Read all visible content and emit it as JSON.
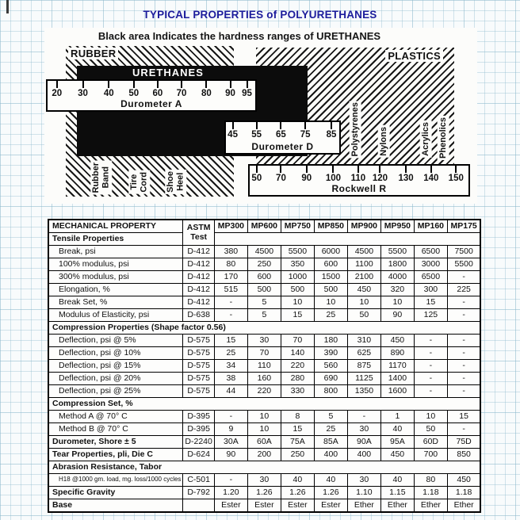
{
  "page": {
    "title": "TYPICAL PROPERTIES of POLYURETHANES",
    "title_color": "#1c1c9c",
    "subtitle": "Black area Indicates the hardness ranges of URETHANES"
  },
  "diagram": {
    "rubber_label": "RUBBER",
    "plastics_label": "PLASTICS",
    "urethanes_label": "URETHANES",
    "black_color": "#0c0c0c",
    "scales": {
      "durometer_a": {
        "label": "Durometer A",
        "ticks": [
          "20",
          "30",
          "40",
          "50",
          "60",
          "70",
          "80",
          "90",
          "95"
        ]
      },
      "durometer_d": {
        "label": "Durometer D",
        "ticks": [
          "45",
          "55",
          "65",
          "75",
          "85"
        ]
      },
      "rockwell_r": {
        "label": "Rockwell R",
        "ticks": [
          "50",
          "70",
          "90",
          "100",
          "110",
          "120",
          "130",
          "140",
          "150"
        ]
      }
    },
    "rubber_examples": [
      "Rubber Band",
      "Tire Cord",
      "Shoe Heel"
    ],
    "plastics_examples": [
      "Polystyrenes",
      "Nylons",
      "Acrylics",
      "Phenolics"
    ]
  },
  "table": {
    "header": {
      "property": "MECHANICAL PROPERTY",
      "astm_line1": "ASTM",
      "astm_line2": "Test",
      "grades": [
        "MP300",
        "MP600",
        "MP750",
        "MP850",
        "MP900",
        "MP950",
        "MP160",
        "MP175"
      ],
      "first_section": "Tensile Properties"
    },
    "rows": [
      {
        "style": "indent",
        "label": "Break, psi",
        "astm": "D-412",
        "values": [
          "380",
          "4500",
          "5500",
          "6000",
          "4500",
          "5500",
          "6500",
          "7500"
        ]
      },
      {
        "style": "indent",
        "label": "100% modulus, psi",
        "astm": "D-412",
        "values": [
          "80",
          "250",
          "350",
          "600",
          "1100",
          "1800",
          "3000",
          "5500"
        ]
      },
      {
        "style": "indent",
        "label": "300% modulus, psi",
        "astm": "D-412",
        "values": [
          "170",
          "600",
          "1000",
          "1500",
          "2100",
          "4000",
          "6500",
          "-"
        ]
      },
      {
        "style": "indent",
        "label": "Elongation, %",
        "astm": "D-412",
        "values": [
          "515",
          "500",
          "500",
          "500",
          "450",
          "320",
          "300",
          "225"
        ]
      },
      {
        "style": "indent",
        "label": "Break Set, %",
        "astm": "D-412",
        "values": [
          "-",
          "5",
          "10",
          "10",
          "10",
          "10",
          "15",
          "-"
        ]
      },
      {
        "style": "indent",
        "label": "Modulus of Elasticity, psi",
        "astm": "D-638",
        "values": [
          "-",
          "5",
          "15",
          "25",
          "50",
          "90",
          "125",
          "-"
        ]
      },
      {
        "style": "section",
        "label": "Compression Properties (Shape factor 0.56)"
      },
      {
        "style": "indent",
        "label": "Deflection, psi @ 5%",
        "astm": "D-575",
        "values": [
          "15",
          "30",
          "70",
          "180",
          "310",
          "450",
          "-",
          "-"
        ]
      },
      {
        "style": "indent",
        "label": "Deflection, psi @ 10%",
        "astm": "D-575",
        "values": [
          "25",
          "70",
          "140",
          "390",
          "625",
          "890",
          "-",
          "-"
        ]
      },
      {
        "style": "indent",
        "label": "Deflection, psi @ 15%",
        "astm": "D-575",
        "values": [
          "34",
          "110",
          "220",
          "560",
          "875",
          "1170",
          "-",
          "-"
        ]
      },
      {
        "style": "indent",
        "label": "Deflection, psi @ 20%",
        "astm": "D-575",
        "values": [
          "38",
          "160",
          "280",
          "690",
          "1125",
          "1400",
          "-",
          "-"
        ]
      },
      {
        "style": "indent",
        "label": "Deflection, psi @ 25%",
        "astm": "D-575",
        "values": [
          "44",
          "220",
          "330",
          "800",
          "1350",
          "1600",
          "-",
          "-"
        ]
      },
      {
        "style": "section",
        "label": "Compression Set, %"
      },
      {
        "style": "indent",
        "label": "Method A @ 70° C",
        "astm": "D-395",
        "values": [
          "-",
          "10",
          "8",
          "5",
          "-",
          "1",
          "10",
          "15"
        ]
      },
      {
        "style": "indent",
        "label": "Method B @ 70° C",
        "astm": "D-395",
        "values": [
          "9",
          "10",
          "15",
          "25",
          "30",
          "40",
          "50",
          "-"
        ]
      },
      {
        "style": "bold",
        "label": "Durometer, Shore ± 5",
        "astm": "D-2240",
        "values": [
          "30A",
          "60A",
          "75A",
          "85A",
          "90A",
          "95A",
          "60D",
          "75D"
        ]
      },
      {
        "style": "bold",
        "label": "Tear Properties, pli, Die C",
        "astm": "D-624",
        "values": [
          "90",
          "200",
          "250",
          "400",
          "400",
          "450",
          "700",
          "850"
        ]
      },
      {
        "style": "section",
        "label": "Abrasion Resistance, Tabor"
      },
      {
        "style": "small",
        "label": "H18 @1000 gm. load, mg. loss/1000 cycles",
        "astm": "C-501",
        "values": [
          "-",
          "30",
          "40",
          "40",
          "30",
          "40",
          "80",
          "450"
        ]
      },
      {
        "style": "bold",
        "label": "Specific Gravity",
        "astm": "D-792",
        "values": [
          "1.20",
          "1.26",
          "1.26",
          "1.26",
          "1.10",
          "1.15",
          "1.18",
          "1.18"
        ]
      },
      {
        "style": "bold",
        "label": "Base",
        "astm": "",
        "values": [
          "Ester",
          "Ester",
          "Ester",
          "Ester",
          "Ether",
          "Ether",
          "Ether",
          "Ether"
        ]
      }
    ]
  }
}
